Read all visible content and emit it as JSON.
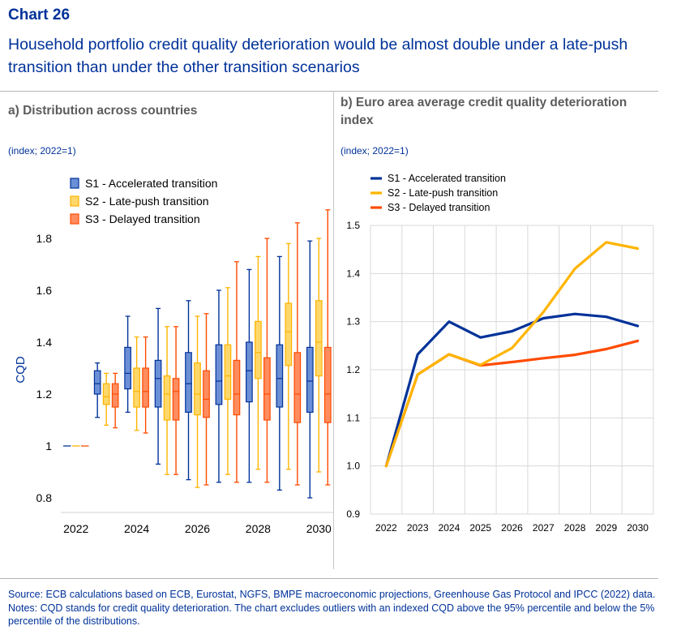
{
  "header": {
    "label": "Chart 26",
    "title": "Household portfolio credit quality deterioration would be almost double under a late-push transition than under the other transition scenarios"
  },
  "panels": {
    "a_title": "a) Distribution across countries",
    "a_unit": "(index; 2022=1)",
    "b_title": "b) Euro area average credit quality deterioration index",
    "b_unit": "(index; 2022=1)"
  },
  "footer": {
    "source": "Source: ECB calculations based on ECB, Eurostat, NGFS, BMPE macroeconomic projections, Greenhouse Gas Protocol and IPCC (2022) data.",
    "notes": "Notes: CQD stands for credit quality deterioration. The chart excludes outliers with an indexed CQD above the 95% percentile and below the 5% percentile of the distributions."
  },
  "colors": {
    "s1": "#003299",
    "s2": "#ffb400",
    "s3": "#ff4b00",
    "s1_fill": "#6b8fd6",
    "s2_fill": "#ffd76a",
    "s3_fill": "#ff8c5e"
  },
  "chart_data": [
    {
      "type": "box",
      "ylabel": "CQD",
      "ylim": [
        0.75,
        1.9
      ],
      "yticks": [
        0.8,
        1,
        1.2,
        1.4,
        1.6,
        1.8
      ],
      "ytick_labels": [
        "0.8",
        "1",
        "1.2",
        "1.4",
        "1.6",
        "1.8"
      ],
      "categories": [
        "2022",
        "2023",
        "2024",
        "2025",
        "2026",
        "2027",
        "2028",
        "2029",
        "2030"
      ],
      "xtick_labels": [
        "2022",
        "2024",
        "2026",
        "2028",
        "2030"
      ],
      "legend": "top-left",
      "series": [
        {
          "name": "S1 - Accelerated transition",
          "key": "s1",
          "boxes": [
            [
              1,
              1,
              1,
              1,
              1
            ],
            [
              1.11,
              1.2,
              1.24,
              1.29,
              1.32
            ],
            [
              1.13,
              1.22,
              1.28,
              1.38,
              1.5
            ],
            [
              0.93,
              1.15,
              1.26,
              1.33,
              1.53
            ],
            [
              0.87,
              1.13,
              1.24,
              1.36,
              1.56
            ],
            [
              0.86,
              1.16,
              1.25,
              1.39,
              1.6
            ],
            [
              0.86,
              1.17,
              1.29,
              1.4,
              1.68
            ],
            [
              0.83,
              1.15,
              1.26,
              1.39,
              1.73
            ],
            [
              0.8,
              1.13,
              1.25,
              1.38,
              1.79
            ]
          ]
        },
        {
          "name": "S2 - Late-push transition",
          "key": "s2",
          "boxes": [
            [
              1,
              1,
              1,
              1,
              1
            ],
            [
              1.08,
              1.16,
              1.19,
              1.24,
              1.28
            ],
            [
              1.06,
              1.15,
              1.21,
              1.3,
              1.42
            ],
            [
              0.89,
              1.1,
              1.2,
              1.27,
              1.46
            ],
            [
              0.84,
              1.12,
              1.2,
              1.32,
              1.5
            ],
            [
              0.89,
              1.18,
              1.27,
              1.39,
              1.61
            ],
            [
              0.91,
              1.26,
              1.36,
              1.48,
              1.73
            ],
            [
              0.91,
              1.31,
              1.44,
              1.55,
              1.78
            ],
            [
              0.9,
              1.27,
              1.4,
              1.56,
              1.8
            ]
          ]
        },
        {
          "name": "S3 - Delayed transition",
          "key": "s3",
          "boxes": [
            [
              1,
              1,
              1,
              1,
              1
            ],
            [
              1.07,
              1.15,
              1.2,
              1.24,
              1.28
            ],
            [
              1.05,
              1.15,
              1.21,
              1.3,
              1.42
            ],
            [
              0.89,
              1.1,
              1.21,
              1.26,
              1.46
            ],
            [
              0.85,
              1.11,
              1.18,
              1.29,
              1.51
            ],
            [
              0.86,
              1.12,
              1.2,
              1.33,
              1.71
            ],
            [
              0.86,
              1.1,
              1.2,
              1.34,
              1.8
            ],
            [
              0.85,
              1.09,
              1.2,
              1.36,
              1.86
            ],
            [
              0.85,
              1.09,
              1.2,
              1.38,
              1.91
            ]
          ]
        }
      ]
    },
    {
      "type": "line",
      "x": [
        "2022",
        "2023",
        "2024",
        "2025",
        "2026",
        "2027",
        "2028",
        "2029",
        "2030"
      ],
      "ylim": [
        0.9,
        1.5
      ],
      "yticks": [
        0.9,
        1.0,
        1.1,
        1.2,
        1.3,
        1.4,
        1.5
      ],
      "ytick_labels": [
        "0.9",
        "1.0",
        "1.1",
        "1.2",
        "1.3",
        "1.4",
        "1.5"
      ],
      "grid": true,
      "legend": "top-left",
      "series": [
        {
          "name": "S1 - Accelerated transition",
          "key": "s1",
          "values": [
            1.0,
            1.232,
            1.3,
            1.267,
            1.28,
            1.307,
            1.316,
            1.31,
            1.291
          ]
        },
        {
          "name": "S2 - Late-push transition",
          "key": "s2",
          "values": [
            1.0,
            1.19,
            1.232,
            1.21,
            1.245,
            1.32,
            1.41,
            1.465,
            1.452
          ]
        },
        {
          "name": "S3 - Delayed transition",
          "key": "s3",
          "values": [
            1.0,
            1.19,
            1.232,
            1.209,
            1.216,
            1.224,
            1.231,
            1.243,
            1.26
          ]
        }
      ]
    }
  ]
}
